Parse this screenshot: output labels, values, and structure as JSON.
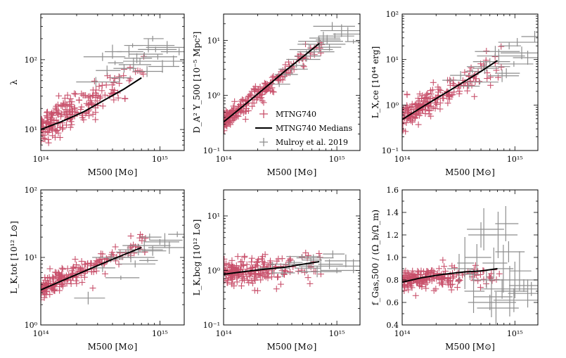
{
  "colors": {
    "sim": "#C8506B",
    "median": "#000000",
    "obs": "#8E8E8E"
  },
  "legend": {
    "panel_index": 1,
    "entries": [
      {
        "label": "MTNG740",
        "kind": "sim"
      },
      {
        "label": "MTNG740 Medians",
        "kind": "median"
      },
      {
        "label": "Mulroy et al. 2019",
        "kind": "obs"
      }
    ]
  },
  "chart_data": [
    {
      "type": "scatter",
      "yscale": "log",
      "xlabel": "M500 [M⊙]",
      "ylabel": "λ",
      "xlim": [
        100000000000000.0,
        1600000000000000.0
      ],
      "ylim": [
        5,
        450
      ],
      "xticks": [
        {
          "v": 100000000000000.0,
          "label": "10¹⁴"
        },
        {
          "v": 1000000000000000.0,
          "label": "10¹⁵"
        }
      ],
      "yticks": [
        {
          "v": 10,
          "label": "10¹"
        },
        {
          "v": 100,
          "label": "10²"
        }
      ],
      "sim": {
        "slope": 0.95,
        "norm": 10.5,
        "scatter": 0.12,
        "min_y": 5
      },
      "medians": {
        "x": [
          100000000000000.0,
          150000000000000.0,
          230000000000000.0,
          350000000000000.0,
          500000000000000.0,
          700000000000000.0
        ],
        "y": [
          10,
          13,
          18,
          27,
          38,
          55
        ]
      },
      "obs": [
        [
          420000000000000.0,
          90
        ],
        [
          550000000000000.0,
          130
        ],
        [
          680000000000000.0,
          95
        ],
        [
          800000000000000.0,
          160
        ],
        [
          360000000000000.0,
          70
        ],
        [
          960000000000000.0,
          110
        ],
        [
          1150000000000000.0,
          150
        ],
        [
          500000000000000.0,
          75
        ],
        [
          740000000000000.0,
          120
        ],
        [
          1300000000000000.0,
          95
        ],
        [
          460000000000000.0,
          55
        ],
        [
          600000000000000.0,
          85
        ],
        [
          290000000000000.0,
          48
        ],
        [
          870000000000000.0,
          200
        ],
        [
          1050000000000000.0,
          80
        ],
        [
          330000000000000.0,
          110
        ],
        [
          590000000000000.0,
          160
        ],
        [
          780000000000000.0,
          68
        ],
        [
          1450000000000000.0,
          130
        ],
        [
          400000000000000.0,
          130
        ],
        [
          640000000000000.0,
          105
        ],
        [
          920000000000000.0,
          140
        ]
      ]
    },
    {
      "type": "scatter",
      "yscale": "log",
      "xlabel": "M500 [M⊙]",
      "ylabel": "D_A² Y_500 [10⁻⁵ Mpc²]",
      "xlim": [
        100000000000000.0,
        1600000000000000.0
      ],
      "ylim": [
        0.1,
        30
      ],
      "xticks": [
        {
          "v": 100000000000000.0,
          "label": "10¹⁴"
        },
        {
          "v": 1000000000000000.0,
          "label": "10¹⁵"
        }
      ],
      "yticks": [
        {
          "v": 0.1,
          "label": "10⁻¹"
        },
        {
          "v": 1,
          "label": "10⁰"
        },
        {
          "v": 10,
          "label": "10¹"
        }
      ],
      "sim": {
        "slope": 1.65,
        "norm": 0.33,
        "scatter": 0.08,
        "min_y": 0.1
      },
      "medians": {
        "x": [
          100000000000000.0,
          150000000000000.0,
          230000000000000.0,
          350000000000000.0,
          500000000000000.0,
          700000000000000.0
        ],
        "y": [
          0.33,
          0.65,
          1.35,
          2.8,
          5.0,
          8.8
        ]
      },
      "obs": [
        [
          440000000000000.0,
          3.5
        ],
        [
          540000000000000.0,
          5.2
        ],
        [
          630000000000000.0,
          6.2
        ],
        [
          700000000000000.0,
          8.5
        ],
        [
          820000000000000.0,
          10.2
        ],
        [
          960000000000000.0,
          12
        ],
        [
          1100000000000000.0,
          15
        ],
        [
          350000000000000.0,
          2.4
        ],
        [
          490000000000000.0,
          4.5
        ],
        [
          690000000000000.0,
          9.6
        ],
        [
          860000000000000.0,
          7.5
        ],
        [
          1250000000000000.0,
          13
        ],
        [
          570000000000000.0,
          6.8
        ],
        [
          310000000000000.0,
          1.6
        ],
        [
          760000000000000.0,
          11
        ],
        [
          910000000000000.0,
          18
        ],
        [
          1400000000000000.0,
          9.5
        ],
        [
          400000000000000.0,
          3.0
        ]
      ]
    },
    {
      "type": "scatter",
      "yscale": "log",
      "xlabel": "M500 [M⊙]",
      "ylabel": "L_X,ce [10⁴⁴ erg]",
      "xlim": [
        100000000000000.0,
        1600000000000000.0
      ],
      "ylim": [
        0.1,
        100
      ],
      "xticks": [
        {
          "v": 100000000000000.0,
          "label": "10¹⁴"
        },
        {
          "v": 1000000000000000.0,
          "label": "10¹⁵"
        }
      ],
      "yticks": [
        {
          "v": 0.1,
          "label": "10⁻¹"
        },
        {
          "v": 1,
          "label": "10⁰"
        },
        {
          "v": 10,
          "label": "10¹"
        },
        {
          "v": 100,
          "label": "10²"
        }
      ],
      "sim": {
        "slope": 1.5,
        "norm": 0.48,
        "scatter": 0.16,
        "min_y": 0.1
      },
      "medians": {
        "x": [
          100000000000000.0,
          150000000000000.0,
          230000000000000.0,
          350000000000000.0,
          500000000000000.0,
          700000000000000.0
        ],
        "y": [
          0.48,
          0.9,
          1.7,
          3.2,
          5.5,
          9.5
        ]
      },
      "obs": [
        [
          420000000000000.0,
          5.5
        ],
        [
          540000000000000.0,
          6.4
        ],
        [
          600000000000000.0,
          9
        ],
        [
          720000000000000.0,
          12
        ],
        [
          840000000000000.0,
          5
        ],
        [
          980000000000000.0,
          8
        ],
        [
          1150000000000000.0,
          14
        ],
        [
          330000000000000.0,
          4.5
        ],
        [
          490000000000000.0,
          3.2
        ],
        [
          670000000000000.0,
          15
        ],
        [
          890000000000000.0,
          20
        ],
        [
          1300000000000000.0,
          11
        ],
        [
          560000000000000.0,
          7
        ],
        [
          390000000000000.0,
          2.6
        ],
        [
          770000000000000.0,
          4.4
        ],
        [
          1050000000000000.0,
          24
        ],
        [
          270000000000000.0,
          3.5
        ],
        [
          1500000000000000.0,
          32
        ]
      ]
    },
    {
      "type": "scatter",
      "yscale": "log",
      "xlabel": "M500 [M⊙]",
      "ylabel": "L_K,tot [10¹² L⊙]",
      "xlim": [
        100000000000000.0,
        1600000000000000.0
      ],
      "ylim": [
        1,
        100
      ],
      "xticks": [
        {
          "v": 100000000000000.0,
          "label": "10¹⁴"
        },
        {
          "v": 1000000000000000.0,
          "label": "10¹⁵"
        }
      ],
      "yticks": [
        {
          "v": 1,
          "label": "10⁰"
        },
        {
          "v": 10,
          "label": "10¹"
        },
        {
          "v": 100,
          "label": "10²"
        }
      ],
      "sim": {
        "slope": 0.8,
        "norm": 3.3,
        "scatter": 0.08,
        "min_y": 1
      },
      "medians": {
        "x": [
          100000000000000.0,
          150000000000000.0,
          230000000000000.0,
          350000000000000.0,
          500000000000000.0,
          700000000000000.0
        ],
        "y": [
          3.3,
          4.5,
          6.2,
          8.5,
          11,
          14
        ]
      },
      "obs": [
        [
          420000000000000.0,
          9.5
        ],
        [
          540000000000000.0,
          12
        ],
        [
          620000000000000.0,
          8
        ],
        [
          740000000000000.0,
          15
        ],
        [
          870000000000000.0,
          12.5
        ],
        [
          1000000000000000.0,
          17
        ],
        [
          1200000000000000.0,
          14
        ],
        [
          330000000000000.0,
          7
        ],
        [
          470000000000000.0,
          5
        ],
        [
          660000000000000.0,
          13
        ],
        [
          820000000000000.0,
          20
        ],
        [
          1100000000000000.0,
          18
        ],
        [
          570000000000000.0,
          10
        ],
        [
          1400000000000000.0,
          22
        ],
        [
          250000000000000.0,
          2.5
        ],
        [
          390000000000000.0,
          10
        ],
        [
          790000000000000.0,
          9
        ]
      ]
    },
    {
      "type": "scatter",
      "yscale": "log",
      "xlabel": "M500 [M⊙]",
      "ylabel": "L_K,bcg [10¹² L⊙]",
      "xlim": [
        100000000000000.0,
        1600000000000000.0
      ],
      "ylim": [
        0.1,
        30
      ],
      "xticks": [
        {
          "v": 100000000000000.0,
          "label": "10¹⁴"
        },
        {
          "v": 1000000000000000.0,
          "label": "10¹⁵"
        }
      ],
      "yticks": [
        {
          "v": 0.1,
          "label": "10⁻¹"
        },
        {
          "v": 1,
          "label": "10⁰"
        },
        {
          "v": 10,
          "label": "10¹"
        }
      ],
      "sim": {
        "slope": 0.22,
        "norm": 0.85,
        "scatter": 0.13,
        "min_y": 0.1
      },
      "medians": {
        "x": [
          100000000000000.0,
          150000000000000.0,
          230000000000000.0,
          350000000000000.0,
          500000000000000.0,
          700000000000000.0
        ],
        "y": [
          0.85,
          0.95,
          1.05,
          1.15,
          1.3,
          1.45
        ]
      },
      "obs": [
        [
          420000000000000.0,
          1.4
        ],
        [
          540000000000000.0,
          1.1
        ],
        [
          620000000000000.0,
          1.7
        ],
        [
          720000000000000.0,
          1.2
        ],
        [
          860000000000000.0,
          1.3
        ],
        [
          1000000000000000.0,
          1.0
        ],
        [
          1200000000000000.0,
          1.5
        ],
        [
          330000000000000.0,
          0.9
        ],
        [
          490000000000000.0,
          1.8
        ],
        [
          670000000000000.0,
          0.95
        ],
        [
          920000000000000.0,
          2.0
        ],
        [
          1400000000000000.0,
          1.2
        ],
        [
          380000000000000.0,
          1.3
        ],
        [
          590000000000000.0,
          1.55
        ],
        [
          270000000000000.0,
          1.1
        ]
      ]
    },
    {
      "type": "scatter",
      "yscale": "linear",
      "xlabel": "M500 [M⊙]",
      "ylabel": "f_Gas,500 / (Ω_b/Ω_m)",
      "xlim": [
        100000000000000.0,
        1600000000000000.0
      ],
      "ylim": [
        0.4,
        1.6
      ],
      "xticks": [
        {
          "v": 100000000000000.0,
          "label": "10¹⁴"
        },
        {
          "v": 1000000000000000.0,
          "label": "10¹⁵"
        }
      ],
      "yticks": [
        {
          "v": 0.4,
          "label": "0.4"
        },
        {
          "v": 0.6,
          "label": "0.6"
        },
        {
          "v": 0.8,
          "label": "0.8"
        },
        {
          "v": 1.0,
          "label": "1.0"
        },
        {
          "v": 1.2,
          "label": "1.2"
        },
        {
          "v": 1.4,
          "label": "1.4"
        },
        {
          "v": 1.6,
          "label": "1.6"
        }
      ],
      "sim": {
        "slope": 0.05,
        "norm": 0.8,
        "scatter": 0.045,
        "min_y": 0.4
      },
      "medians": {
        "x": [
          100000000000000.0,
          150000000000000.0,
          230000000000000.0,
          350000000000000.0,
          500000000000000.0,
          700000000000000.0
        ],
        "y": [
          0.78,
          0.82,
          0.85,
          0.87,
          0.88,
          0.9
        ]
      },
      "obs": [
        [
          400000000000000.0,
          0.85
        ],
        [
          460000000000000.0,
          1.0
        ],
        [
          530000000000000.0,
          1.25
        ],
        [
          600000000000000.0,
          0.6
        ],
        [
          650000000000000.0,
          0.95
        ],
        [
          710000000000000.0,
          1.2
        ],
        [
          770000000000000.0,
          0.72
        ],
        [
          830000000000000.0,
          1.3
        ],
        [
          900000000000000.0,
          0.7
        ],
        [
          980000000000000.0,
          0.62
        ],
        [
          1100000000000000.0,
          0.88
        ],
        [
          1200000000000000.0,
          0.75
        ],
        [
          1300000000000000.0,
          0.68
        ],
        [
          430000000000000.0,
          0.7
        ],
        [
          560000000000000.0,
          0.8
        ],
        [
          680000000000000.0,
          0.55
        ],
        [
          790000000000000.0,
          0.9
        ],
        [
          880000000000000.0,
          1.05
        ],
        [
          1000000000000000.0,
          0.8
        ],
        [
          360000000000000.0,
          0.95
        ],
        [
          500000000000000.0,
          1.2
        ],
        [
          620000000000000.0,
          0.65
        ],
        [
          1400000000000000.0,
          0.72
        ],
        [
          320000000000000.0,
          0.9
        ]
      ]
    }
  ]
}
